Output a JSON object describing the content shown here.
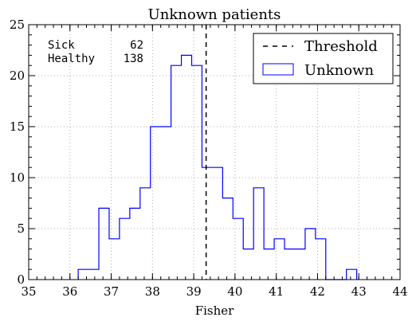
{
  "chart_data": {
    "type": "histogram",
    "title": "Unknown patients",
    "xlabel": "Fisher",
    "ylabel": "",
    "xlim": [
      35,
      44
    ],
    "ylim": [
      0,
      25
    ],
    "xticks": [
      35,
      36,
      37,
      38,
      39,
      40,
      41,
      42,
      43,
      44
    ],
    "yticks": [
      0,
      5,
      10,
      15,
      20,
      25
    ],
    "grid": true,
    "legend_position": "top-right",
    "colors": {
      "series": "#0000ff",
      "threshold": "#000000"
    },
    "series": [
      {
        "name": "Unknown",
        "style": "step",
        "bin_width": 0.25,
        "bins": [
          {
            "x0": 36.2,
            "count": 1
          },
          {
            "x0": 36.45,
            "count": 1
          },
          {
            "x0": 36.7,
            "count": 7
          },
          {
            "x0": 36.95,
            "count": 4
          },
          {
            "x0": 37.2,
            "count": 6
          },
          {
            "x0": 37.45,
            "count": 7
          },
          {
            "x0": 37.7,
            "count": 9
          },
          {
            "x0": 37.95,
            "count": 15
          },
          {
            "x0": 38.2,
            "count": 15
          },
          {
            "x0": 38.45,
            "count": 21
          },
          {
            "x0": 38.7,
            "count": 22
          },
          {
            "x0": 38.95,
            "count": 21
          },
          {
            "x0": 39.2,
            "count": 11
          },
          {
            "x0": 39.45,
            "count": 11
          },
          {
            "x0": 39.7,
            "count": 8
          },
          {
            "x0": 39.95,
            "count": 6
          },
          {
            "x0": 40.2,
            "count": 3
          },
          {
            "x0": 40.45,
            "count": 9
          },
          {
            "x0": 40.7,
            "count": 3
          },
          {
            "x0": 40.95,
            "count": 4
          },
          {
            "x0": 41.2,
            "count": 3
          },
          {
            "x0": 41.45,
            "count": 3
          },
          {
            "x0": 41.7,
            "count": 5
          },
          {
            "x0": 41.95,
            "count": 4
          },
          {
            "x0": 42.2,
            "count": 0
          },
          {
            "x0": 42.45,
            "count": 0
          },
          {
            "x0": 42.7,
            "count": 1
          }
        ]
      }
    ],
    "threshold": {
      "name": "Threshold",
      "x": 39.3,
      "style": "dashed"
    },
    "annotation": {
      "lines": [
        {
          "label": "Sick",
          "value": "62"
        },
        {
          "label": "Healthy",
          "value": "138"
        }
      ]
    }
  }
}
